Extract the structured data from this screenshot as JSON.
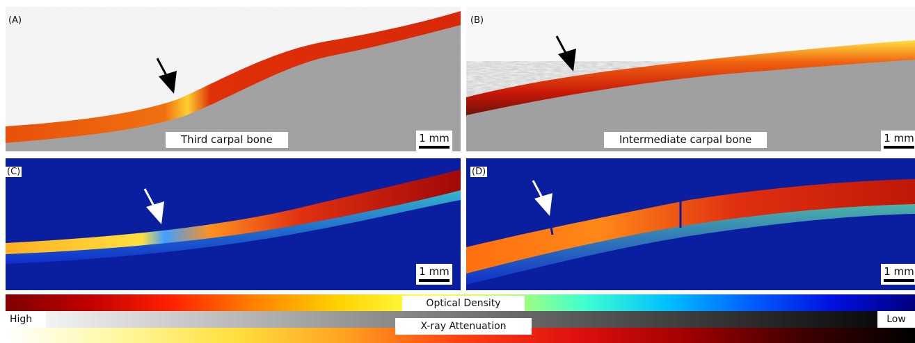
{
  "panels": {
    "a": {
      "label": "(A)",
      "caption": "Third carpal bone",
      "scale_label": "1 mm"
    },
    "b": {
      "label": "(B)",
      "caption": "Intermediate carpal bone",
      "scale_label": "1 mm"
    },
    "c": {
      "label": "(C)",
      "scale_label": "1 mm"
    },
    "d": {
      "label": "(D)",
      "scale_label": "1 mm"
    }
  },
  "legend": {
    "high_label": "High",
    "low_label": "Low",
    "optical_density_label": "Optical Density",
    "xray_label": "X-ray Attenuation"
  },
  "colors": {
    "od_background": "#0a1ea0",
    "ct_cartilage_red": "#e8300a",
    "ct_cartilage_yellow": "#ffe040",
    "bone_gray": "#9a9a9a"
  }
}
